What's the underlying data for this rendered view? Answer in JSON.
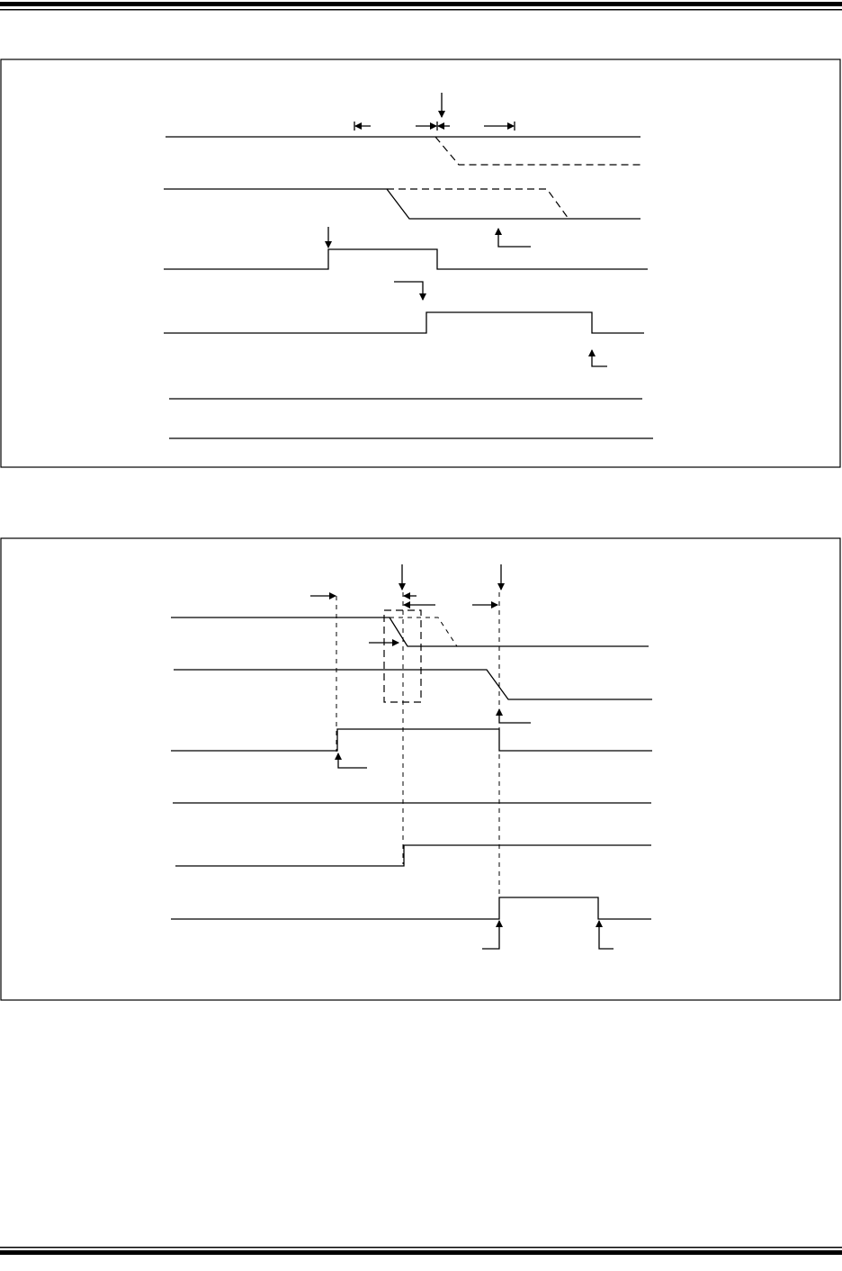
{
  "colors": {
    "line": "#000000",
    "background": "#ffffff"
  },
  "figures": [
    {
      "signals": 6
    },
    {
      "signals": 6
    }
  ]
}
